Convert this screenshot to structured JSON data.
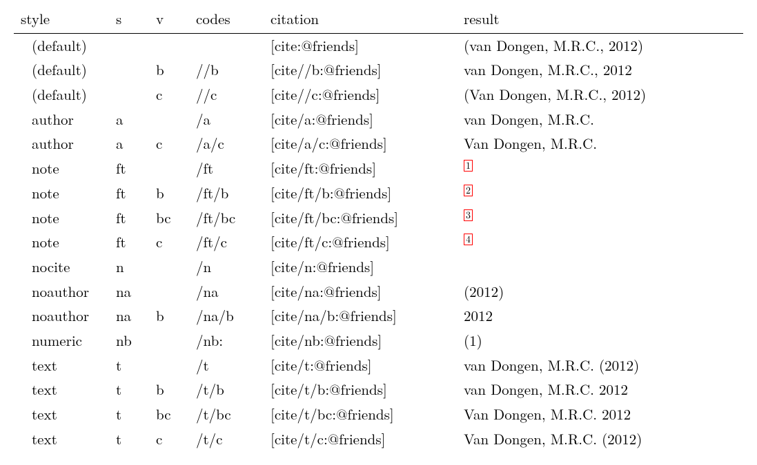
{
  "table": {
    "headers": [
      "style",
      "s",
      "v",
      "codes",
      "citation",
      "result"
    ],
    "rows": [
      {
        "style": "(default)",
        "s": "",
        "v": "",
        "codes": "",
        "citation": "[cite:@friends]",
        "result": "(van Dongen, M.R.C., 2012)",
        "result_kind": "text"
      },
      {
        "style": "(default)",
        "s": "",
        "v": "b",
        "codes": "//b",
        "citation": "[cite//b:@friends]",
        "result": "van Dongen, M.R.C., 2012",
        "result_kind": "text"
      },
      {
        "style": "(default)",
        "s": "",
        "v": "c",
        "codes": "//c",
        "citation": "[cite//c:@friends]",
        "result": "(Van Dongen, M.R.C., 2012)",
        "result_kind": "text"
      },
      {
        "style": "author",
        "s": "a",
        "v": "",
        "codes": "/a",
        "citation": "[cite/a:@friends]",
        "result": "van Dongen, M.R.C.",
        "result_kind": "text"
      },
      {
        "style": "author",
        "s": "a",
        "v": "c",
        "codes": "/a/c",
        "citation": "[cite/a/c:@friends]",
        "result": "Van Dongen, M.R.C.",
        "result_kind": "text"
      },
      {
        "style": "note",
        "s": "ft",
        "v": "",
        "codes": "/ft",
        "citation": "[cite/ft:@friends]",
        "result": "1",
        "result_kind": "footnote"
      },
      {
        "style": "note",
        "s": "ft",
        "v": "b",
        "codes": "/ft/b",
        "citation": "[cite/ft/b:@friends]",
        "result": "2",
        "result_kind": "footnote"
      },
      {
        "style": "note",
        "s": "ft",
        "v": "bc",
        "codes": "/ft/bc",
        "citation": "[cite/ft/bc:@friends]",
        "result": "3",
        "result_kind": "footnote"
      },
      {
        "style": "note",
        "s": "ft",
        "v": "c",
        "codes": "/ft/c",
        "citation": "[cite/ft/c:@friends]",
        "result": "4",
        "result_kind": "footnote"
      },
      {
        "style": "nocite",
        "s": "n",
        "v": "",
        "codes": "/n",
        "citation": "[cite/n:@friends]",
        "result": "",
        "result_kind": "text"
      },
      {
        "style": "noauthor",
        "s": "na",
        "v": "",
        "codes": "/na",
        "citation": "[cite/na:@friends]",
        "result": "(2012)",
        "result_kind": "text"
      },
      {
        "style": "noauthor",
        "s": "na",
        "v": "b",
        "codes": "/na/b",
        "citation": "[cite/na/b:@friends]",
        "result": "2012",
        "result_kind": "text"
      },
      {
        "style": "numeric",
        "s": "nb",
        "v": "",
        "codes": "/nb:",
        "citation": "[cite/nb:@friends]",
        "result": "(1)",
        "result_kind": "text"
      },
      {
        "style": "text",
        "s": "t",
        "v": "",
        "codes": "/t",
        "citation": "[cite/t:@friends]",
        "result": "van Dongen, M.R.C. (2012)",
        "result_kind": "text"
      },
      {
        "style": "text",
        "s": "t",
        "v": "b",
        "codes": "/t/b",
        "citation": "[cite/t/b:@friends]",
        "result": "van Dongen, M.R.C. 2012",
        "result_kind": "text"
      },
      {
        "style": "text",
        "s": "t",
        "v": "bc",
        "codes": "/t/bc",
        "citation": "[cite/t/bc:@friends]",
        "result": "Van Dongen, M.R.C. 2012",
        "result_kind": "text"
      },
      {
        "style": "text",
        "s": "t",
        "v": "c",
        "codes": "/t/c",
        "citation": "[cite/t/c:@friends]",
        "result": "Van Dongen, M.R.C. (2012)",
        "result_kind": "text"
      }
    ],
    "footnote_border_color": "#ff0000"
  }
}
